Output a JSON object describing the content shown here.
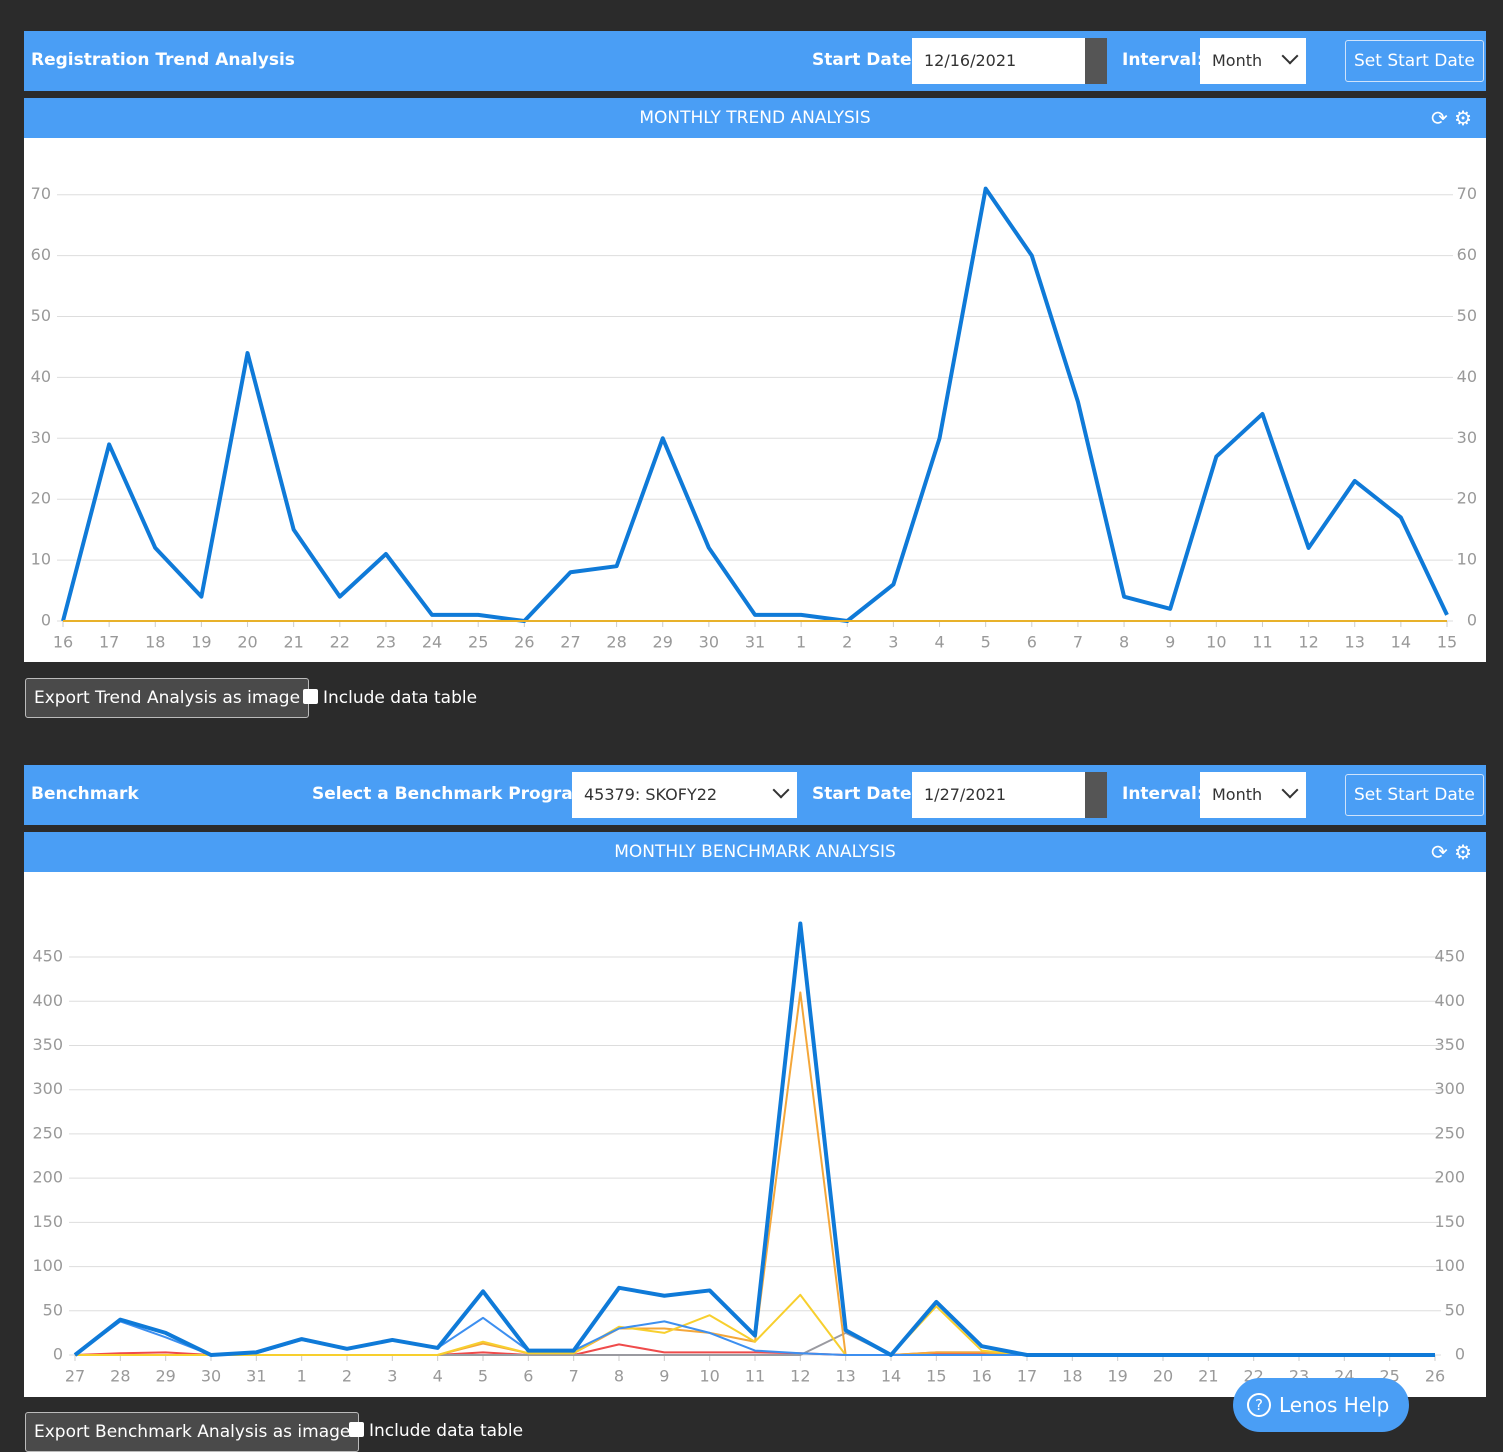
{
  "trend_header": {
    "title": "Registration Trend Analysis",
    "start_label": "Start Date:",
    "start_value": "12/16/2021",
    "interval_label": "Interval:",
    "interval_value": "Month",
    "button": "Set Start Date"
  },
  "trend_chart": {
    "type": "line",
    "title": "MONTHLY TREND ANALYSIS",
    "categories": [
      "16",
      "17",
      "18",
      "19",
      "20",
      "21",
      "22",
      "23",
      "24",
      "25",
      "26",
      "27",
      "28",
      "29",
      "30",
      "31",
      "1",
      "2",
      "3",
      "4",
      "5",
      "6",
      "7",
      "8",
      "9",
      "10",
      "11",
      "12",
      "13",
      "14",
      "15"
    ],
    "series": [
      {
        "color": "#0f7ad8",
        "width": 4,
        "values": [
          0,
          29,
          12,
          4,
          44,
          15,
          4,
          11,
          1,
          1,
          0,
          8,
          9,
          30,
          12,
          1,
          1,
          0,
          6,
          30,
          71,
          60,
          36,
          4,
          2,
          27,
          34,
          12,
          23,
          17,
          1
        ]
      },
      {
        "color": "#e8b12a",
        "width": 2,
        "values": [
          0,
          0,
          0,
          0,
          0,
          0,
          0,
          0,
          0,
          0,
          0,
          0,
          0,
          0,
          0,
          0,
          0,
          0,
          0,
          0,
          0,
          0,
          0,
          0,
          0,
          0,
          0,
          0,
          0,
          0,
          0
        ]
      }
    ],
    "ylim": [
      0,
      78
    ],
    "yticks": [
      0,
      10,
      20,
      30,
      40,
      50,
      60,
      70
    ],
    "grid": true
  },
  "trend_footer": {
    "export": "Export Trend Analysis as image",
    "checkbox": "Include data table"
  },
  "benchmark_header": {
    "title": "Benchmark",
    "program_label": "Select a Benchmark Program:",
    "program_value": "45379: SKOFY22",
    "start_label": "Start Date:",
    "start_value": "1/27/2021",
    "interval_label": "Interval:",
    "interval_value": "Month",
    "button": "Set Start Date"
  },
  "benchmark_chart": {
    "type": "line",
    "title": "MONTHLY BENCHMARK ANALYSIS",
    "categories": [
      "27",
      "28",
      "29",
      "30",
      "31",
      "1",
      "2",
      "3",
      "4",
      "5",
      "6",
      "7",
      "8",
      "9",
      "10",
      "11",
      "12",
      "13",
      "14",
      "15",
      "16",
      "17",
      "18",
      "19",
      "20",
      "21",
      "22",
      "23",
      "24",
      "25",
      "26"
    ],
    "series": [
      {
        "color": "#ef4b4b",
        "width": 2,
        "values": [
          0,
          2,
          3,
          0,
          0,
          0,
          0,
          0,
          0,
          3,
          0,
          0,
          12,
          3,
          3,
          3,
          2,
          0,
          0,
          2,
          2,
          0,
          0,
          0,
          0,
          0,
          0,
          0,
          0,
          0,
          0
        ]
      },
      {
        "color": "#9a9aa0",
        "width": 2,
        "values": [
          0,
          0,
          0,
          0,
          0,
          0,
          0,
          0,
          0,
          0,
          0,
          0,
          0,
          0,
          0,
          0,
          0,
          25,
          0,
          3,
          3,
          0,
          0,
          0,
          0,
          0,
          0,
          0,
          0,
          0,
          0
        ]
      },
      {
        "color": "#f4a73a",
        "width": 2,
        "values": [
          0,
          0,
          0,
          0,
          0,
          0,
          0,
          0,
          0,
          13,
          2,
          2,
          30,
          30,
          25,
          15,
          410,
          0,
          0,
          3,
          3,
          0,
          0,
          0,
          0,
          0,
          0,
          0,
          0,
          0,
          0
        ]
      },
      {
        "color": "#f7cf2e",
        "width": 2,
        "values": [
          0,
          0,
          0,
          0,
          0,
          0,
          0,
          0,
          0,
          15,
          2,
          2,
          32,
          25,
          45,
          15,
          68,
          0,
          0,
          55,
          5,
          0,
          0,
          0,
          0,
          0,
          0,
          0,
          0,
          0,
          0
        ]
      },
      {
        "color": "#3d8ff0",
        "width": 2,
        "values": [
          0,
          38,
          20,
          0,
          2,
          17,
          7,
          17,
          8,
          42,
          5,
          5,
          30,
          38,
          25,
          5,
          2,
          0,
          0,
          0,
          0,
          0,
          0,
          0,
          0,
          0,
          0,
          0,
          0,
          0,
          0
        ]
      },
      {
        "color": "#0f7ad8",
        "width": 4,
        "values": [
          0,
          40,
          25,
          0,
          3,
          18,
          7,
          17,
          8,
          72,
          5,
          5,
          76,
          67,
          73,
          22,
          488,
          28,
          0,
          60,
          10,
          0,
          0,
          0,
          0,
          0,
          0,
          0,
          0,
          0,
          0
        ]
      }
    ],
    "ylim": [
      0,
      510
    ],
    "yticks": [
      0,
      50,
      100,
      150,
      200,
      250,
      300,
      350,
      400,
      450
    ],
    "grid": true
  },
  "benchmark_footer": {
    "export": "Export Benchmark Analysis as image",
    "checkbox": "Include data table"
  },
  "help": {
    "label": "Lenos Help"
  }
}
